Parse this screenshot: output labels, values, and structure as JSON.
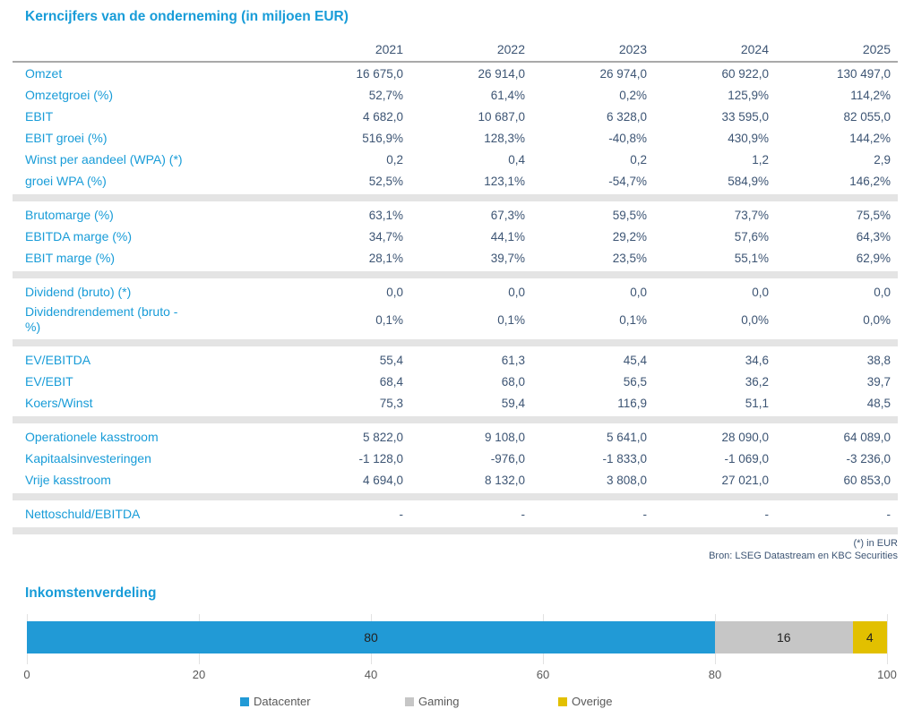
{
  "table": {
    "title": "Kerncijfers van de onderneming (in miljoen EUR)",
    "years": [
      "2021",
      "2022",
      "2023",
      "2024",
      "2025"
    ],
    "sections": [
      {
        "rows": [
          {
            "label": "Omzet",
            "values": [
              "16 675,0",
              "26 914,0",
              "26 974,0",
              "60 922,0",
              "130 497,0"
            ]
          },
          {
            "label": "Omzetgroei (%)",
            "values": [
              "52,7%",
              "61,4%",
              "0,2%",
              "125,9%",
              "114,2%"
            ]
          },
          {
            "label": "EBIT",
            "values": [
              "4 682,0",
              "10 687,0",
              "6 328,0",
              "33 595,0",
              "82 055,0"
            ]
          },
          {
            "label": "EBIT groei (%)",
            "values": [
              "516,9%",
              "128,3%",
              "-40,8%",
              "430,9%",
              "144,2%"
            ]
          },
          {
            "label": "Winst per aandeel (WPA) (*)",
            "values": [
              "0,2",
              "0,4",
              "0,2",
              "1,2",
              "2,9"
            ]
          },
          {
            "label": "groei WPA (%)",
            "values": [
              "52,5%",
              "123,1%",
              "-54,7%",
              "584,9%",
              "146,2%"
            ]
          }
        ]
      },
      {
        "rows": [
          {
            "label": "Brutomarge (%)",
            "values": [
              "63,1%",
              "67,3%",
              "59,5%",
              "73,7%",
              "75,5%"
            ]
          },
          {
            "label": "EBITDA marge (%)",
            "values": [
              "34,7%",
              "44,1%",
              "29,2%",
              "57,6%",
              "64,3%"
            ]
          },
          {
            "label": "EBIT marge (%)",
            "values": [
              "28,1%",
              "39,7%",
              "23,5%",
              "55,1%",
              "62,9%"
            ]
          }
        ]
      },
      {
        "rows": [
          {
            "label": "Dividend (bruto) (*)",
            "values": [
              "0,0",
              "0,0",
              "0,0",
              "0,0",
              "0,0"
            ]
          },
          {
            "label": "Dividendrendement (bruto - %)",
            "wrap": true,
            "values": [
              "0,1%",
              "0,1%",
              "0,1%",
              "0,0%",
              "0,0%"
            ]
          }
        ]
      },
      {
        "rows": [
          {
            "label": "EV/EBITDA",
            "values": [
              "55,4",
              "61,3",
              "45,4",
              "34,6",
              "38,8"
            ]
          },
          {
            "label": "EV/EBIT",
            "values": [
              "68,4",
              "68,0",
              "56,5",
              "36,2",
              "39,7"
            ]
          },
          {
            "label": "Koers/Winst",
            "values": [
              "75,3",
              "59,4",
              "116,9",
              "51,1",
              "48,5"
            ]
          }
        ]
      },
      {
        "rows": [
          {
            "label": "Operationele kasstroom",
            "values": [
              "5 822,0",
              "9 108,0",
              "5 641,0",
              "28 090,0",
              "64 089,0"
            ]
          },
          {
            "label": "Kapitaalsinvesteringen",
            "values": [
              "-1 128,0",
              "-976,0",
              "-1 833,0",
              "-1 069,0",
              "-3 236,0"
            ]
          },
          {
            "label": "Vrije kasstroom",
            "values": [
              "4 694,0",
              "8 132,0",
              "3 808,0",
              "27 021,0",
              "60 853,0"
            ]
          }
        ]
      },
      {
        "rows": [
          {
            "label": "Nettoschuld/EBITDA",
            "values": [
              "-",
              "-",
              "-",
              "-",
              "-"
            ]
          }
        ]
      }
    ]
  },
  "footnotes": [
    "(*) in EUR",
    "Bron: LSEG Datastream en KBC Securities"
  ],
  "chart_title": "Inkomstenverdeling",
  "chart_data": {
    "type": "bar",
    "stacked": true,
    "orientation": "horizontal",
    "title": "Inkomstenverdeling",
    "series": [
      {
        "name": "Datacenter",
        "value": 80,
        "color": "#219AD6"
      },
      {
        "name": "Gaming",
        "value": 16,
        "color": "#C6C6C6"
      },
      {
        "name": "Overige",
        "value": 4,
        "color": "#E2C000"
      }
    ],
    "xlim": [
      0,
      100
    ],
    "ticks": [
      0,
      20,
      40,
      60,
      80,
      100
    ],
    "grid": "vertical",
    "legend_position": "bottom"
  },
  "colors": {
    "accent_blue": "#189CD8",
    "value_text": "#3D5574",
    "separator_band": "#E4E4E4",
    "header_rule": "#A9A9A9",
    "axis_text": "#595959"
  }
}
